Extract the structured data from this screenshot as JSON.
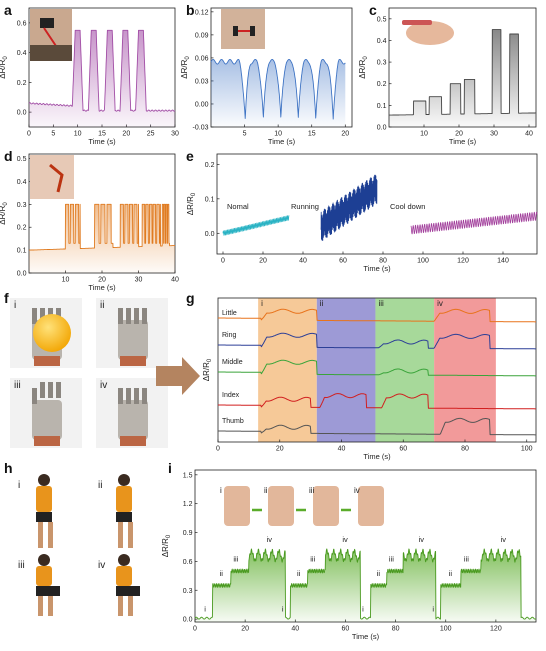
{
  "panel_labels": [
    "a",
    "b",
    "c",
    "d",
    "e",
    "f",
    "g",
    "h",
    "i"
  ],
  "colors": {
    "a": "#a24ea6",
    "b": "#3f74c4",
    "c": "#555555",
    "d": "#e07b20",
    "e_nomal": "#2ab3c4",
    "e_running": "#1d3f94",
    "e_cool": "#a23f9c",
    "little": "#e8731c",
    "ring": "#2c3f97",
    "middle": "#3aa43a",
    "index": "#d11f1f",
    "thumb": "#555555",
    "i": "#5aac2a"
  },
  "chart_data": [
    {
      "id": "a",
      "type": "line",
      "xlabel": "Time (s)",
      "ylabel": "ΔR/R0",
      "xticks": [
        "0",
        "5",
        "10",
        "15",
        "20",
        "25",
        "30"
      ],
      "yticks": [
        "0.0",
        "0.2",
        "0.4",
        "0.6"
      ],
      "xlim": [
        0,
        30
      ],
      "ylim": [
        -0.1,
        0.7
      ]
    },
    {
      "id": "b",
      "type": "line",
      "xlabel": "Time (s)",
      "ylabel": "ΔR/R0",
      "xticks": [
        "5",
        "10",
        "15",
        "20"
      ],
      "yticks": [
        "-0.03",
        "0.00",
        "0.03",
        "0.06",
        "0.09",
        "0.12"
      ],
      "xlim": [
        0,
        21
      ],
      "ylim": [
        -0.03,
        0.125
      ]
    },
    {
      "id": "c",
      "type": "line",
      "xlabel": "Time (s)",
      "ylabel": "ΔR/R0",
      "xticks": [
        "10",
        "20",
        "30",
        "40"
      ],
      "yticks": [
        "0.0",
        "0.1",
        "0.2",
        "0.3",
        "0.4",
        "0.5"
      ],
      "xlim": [
        0,
        42
      ],
      "ylim": [
        0,
        0.55
      ]
    },
    {
      "id": "d",
      "type": "line",
      "xlabel": "Time (s)",
      "ylabel": "ΔR/R0",
      "xticks": [
        "10",
        "20",
        "30",
        "40"
      ],
      "yticks": [
        "0.0",
        "0.1",
        "0.2",
        "0.3",
        "0.4",
        "0.5"
      ],
      "xlim": [
        0,
        40
      ],
      "ylim": [
        0,
        0.52
      ]
    },
    {
      "id": "e",
      "type": "line",
      "xlabel": "Time (s)",
      "ylabel": "ΔR/R0",
      "xticks": [
        "0",
        "20",
        "40",
        "60",
        "80",
        "100",
        "120",
        "140"
      ],
      "yticks": [
        "0.0",
        "0.1",
        "0.2"
      ],
      "xlim": [
        -3,
        157
      ],
      "ylim": [
        -0.06,
        0.23
      ],
      "annotations": [
        "Nomal",
        "Running",
        "Cool down"
      ]
    },
    {
      "id": "g",
      "type": "line",
      "xlabel": "Time (s)",
      "ylabel": "ΔR/R0",
      "xticks": [
        "0",
        "20",
        "40",
        "60",
        "80",
        "100"
      ],
      "xlim": [
        0,
        103
      ],
      "series": [
        {
          "name": "Little"
        },
        {
          "name": "Ring"
        },
        {
          "name": "Middle"
        },
        {
          "name": "Index"
        },
        {
          "name": "Thumb"
        }
      ],
      "regions": [
        {
          "label": "i",
          "from": 13,
          "to": 32,
          "color": "#f6c998"
        },
        {
          "label": "ii",
          "from": 32,
          "to": 51,
          "color": "#9d9ad6"
        },
        {
          "label": "iii",
          "from": 51,
          "to": 70,
          "color": "#a7d99a"
        },
        {
          "label": "iv",
          "from": 70,
          "to": 90,
          "color": "#f29a9a"
        }
      ]
    },
    {
      "id": "i",
      "type": "line",
      "xlabel": "Time (s)",
      "ylabel": "ΔR/R0",
      "xticks": [
        "0",
        "20",
        "40",
        "60",
        "80",
        "100",
        "120"
      ],
      "yticks": [
        "0.0",
        "0.3",
        "0.6",
        "0.9",
        "1.2",
        "1.5"
      ],
      "xlim": [
        0,
        136
      ],
      "ylim": [
        -0.03,
        1.55
      ],
      "annotations": [
        "i",
        "ii",
        "iii",
        "iv"
      ]
    }
  ],
  "photo_labels_f": [
    "i",
    "ii",
    "iii",
    "iv"
  ],
  "photo_labels_h": [
    "i",
    "ii",
    "iii",
    "iv"
  ],
  "inset_labels_i": [
    "i",
    "ii",
    "iii",
    "iv"
  ]
}
